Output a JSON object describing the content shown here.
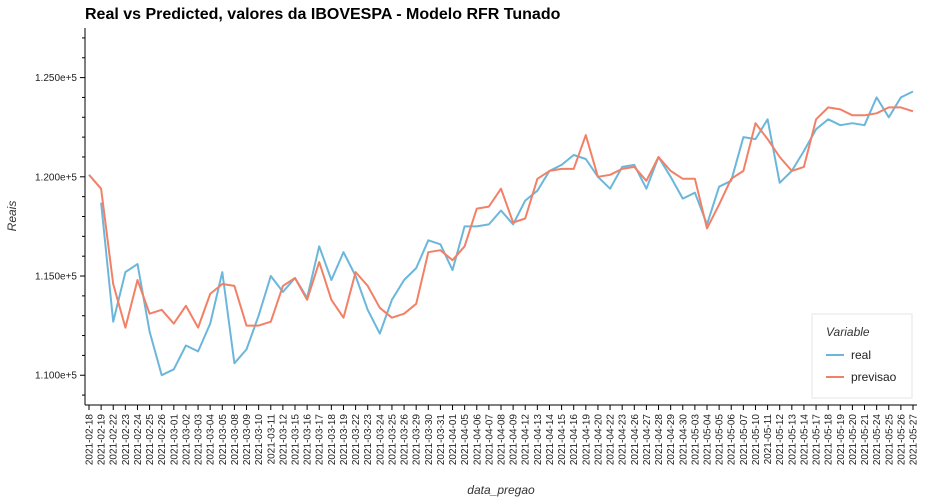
{
  "chart_data": {
    "type": "line",
    "title": "Real vs Predicted, valores da IBOVESPA - Modelo RFR Tunado",
    "xlabel": "data_pregao",
    "ylabel": "Reais",
    "ylim": [
      108500,
      127500
    ],
    "yticks": [
      110000,
      115000,
      120000,
      125000
    ],
    "ytick_labels": [
      "1.100e+5",
      "1.150e+5",
      "1.200e+5",
      "1.250e+5"
    ],
    "grid": false,
    "legend": {
      "title": "Variable",
      "position": "bottom-right"
    },
    "categories": [
      "2021-02-18",
      "2021-02-19",
      "2021-02-22",
      "2021-02-23",
      "2021-02-24",
      "2021-02-25",
      "2021-02-26",
      "2021-03-01",
      "2021-03-02",
      "2021-03-03",
      "2021-03-04",
      "2021-03-05",
      "2021-03-08",
      "2021-03-09",
      "2021-03-10",
      "2021-03-11",
      "2021-03-12",
      "2021-03-15",
      "2021-03-16",
      "2021-03-17",
      "2021-03-18",
      "2021-03-19",
      "2021-03-22",
      "2021-03-23",
      "2021-03-24",
      "2021-03-25",
      "2021-03-26",
      "2021-03-29",
      "2021-03-30",
      "2021-03-31",
      "2021-04-01",
      "2021-04-05",
      "2021-04-06",
      "2021-04-07",
      "2021-04-08",
      "2021-04-09",
      "2021-04-12",
      "2021-04-13",
      "2021-04-14",
      "2021-04-15",
      "2021-04-16",
      "2021-04-19",
      "2021-04-20",
      "2021-04-22",
      "2021-04-23",
      "2021-04-26",
      "2021-04-27",
      "2021-04-28",
      "2021-04-29",
      "2021-04-30",
      "2021-05-03",
      "2021-05-04",
      "2021-05-05",
      "2021-05-06",
      "2021-05-07",
      "2021-05-10",
      "2021-05-11",
      "2021-05-12",
      "2021-05-13",
      "2021-05-14",
      "2021-05-17",
      "2021-05-18",
      "2021-05-19",
      "2021-05-20",
      "2021-05-21",
      "2021-05-24",
      "2021-05-25",
      "2021-05-26",
      "2021-05-27"
    ],
    "series": [
      {
        "name": "real",
        "color": "#6bb7db",
        "values": [
          null,
          118700,
          112700,
          115200,
          115600,
          112200,
          110000,
          110300,
          111500,
          111200,
          112600,
          115200,
          110600,
          111300,
          113000,
          115000,
          114200,
          114900,
          113900,
          116500,
          114800,
          116200,
          115000,
          113300,
          112100,
          113800,
          114800,
          115400,
          116800,
          116600,
          115300,
          117500,
          117500,
          117600,
          118300,
          117600,
          118800,
          119300,
          120300,
          120600,
          121100,
          120900,
          120000,
          119400,
          120500,
          120600,
          119400,
          121000,
          120000,
          118900,
          119200,
          117600,
          119500,
          119800,
          122000,
          121900,
          122900,
          119700,
          120300,
          121300,
          122400,
          122900,
          122600,
          122700,
          122600,
          124000,
          123000,
          124000,
          124300
        ]
      },
      {
        "name": "previsao",
        "color": "#f28066",
        "values": [
          120100,
          119400,
          114600,
          112400,
          114800,
          113100,
          113300,
          112600,
          113500,
          112400,
          114100,
          114600,
          114500,
          112500,
          112500,
          112700,
          114500,
          114900,
          113800,
          115700,
          113800,
          112900,
          115200,
          114500,
          113400,
          112900,
          113100,
          113600,
          116200,
          116300,
          115800,
          116500,
          118400,
          118500,
          119400,
          117700,
          117900,
          119900,
          120300,
          120400,
          120400,
          122100,
          120000,
          120100,
          120400,
          120500,
          119800,
          121000,
          120300,
          119900,
          119900,
          117400,
          118600,
          119900,
          120300,
          122700,
          121900,
          121000,
          120300,
          120500,
          122900,
          123500,
          123400,
          123100,
          123100,
          123200,
          123500,
          123500,
          123300
        ]
      }
    ]
  }
}
